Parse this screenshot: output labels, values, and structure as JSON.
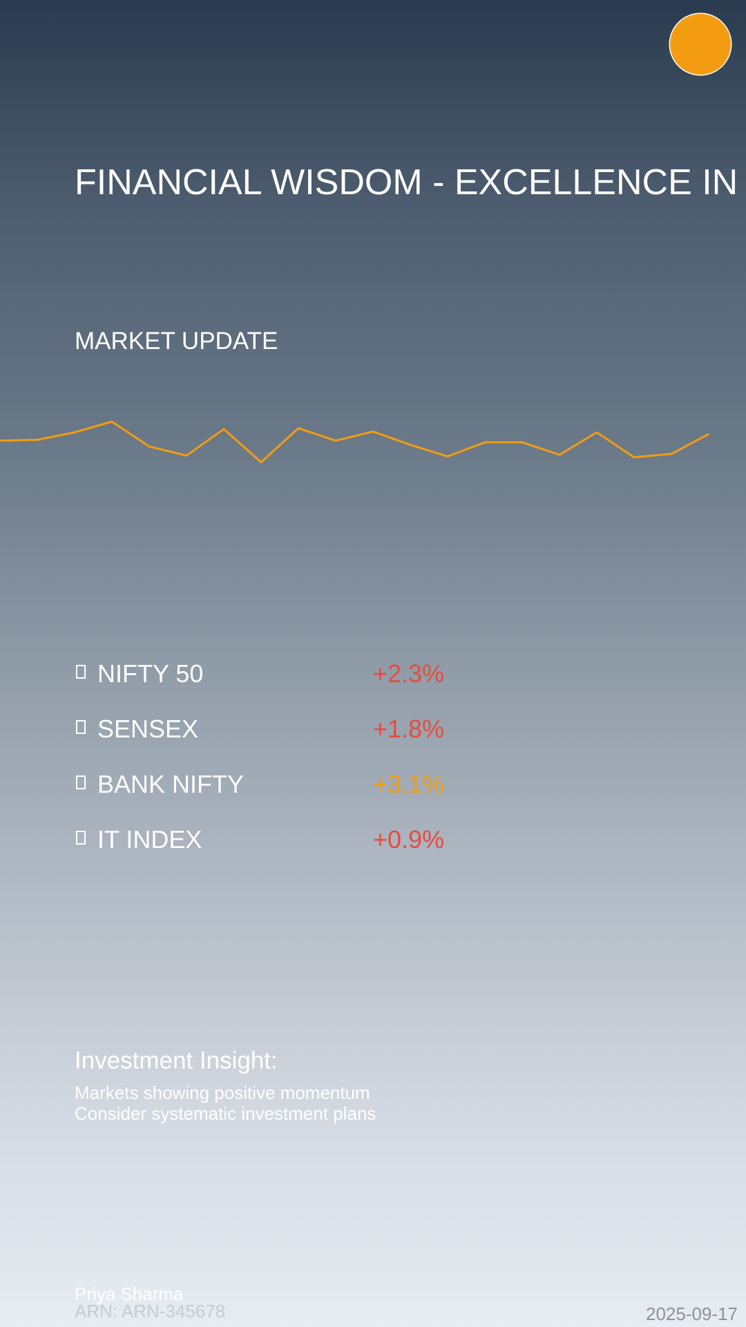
{
  "brand": {
    "accent_color": "#f39c12",
    "logo_icon": "orange-circle-logo"
  },
  "headline": "FINANCIAL WISDOM - EXCELLENCE IN",
  "market": {
    "section_title": "MARKET UPDATE",
    "indices": [
      {
        "name": "NIFTY 50",
        "change": "+2.3%",
        "color": "#e74c3c"
      },
      {
        "name": "SENSEX",
        "change": "+1.8%",
        "color": "#e74c3c"
      },
      {
        "name": "BANK NIFTY",
        "change": "+3.1%",
        "color": "#f39c12"
      },
      {
        "name": "IT INDEX",
        "change": "+0.9%",
        "color": "#e74c3c"
      }
    ],
    "index_icon": "box-glyph-icon"
  },
  "chart_data": {
    "type": "line",
    "title": "",
    "xlabel": "",
    "ylabel": "",
    "grid": false,
    "legend": "none",
    "color": "#f39c12",
    "values": [
      52,
      53,
      62,
      75,
      45,
      34,
      66,
      26,
      67,
      52,
      63,
      47,
      33,
      50,
      50,
      35,
      62,
      32,
      36,
      60
    ],
    "ylim": [
      0,
      100
    ]
  },
  "insight": {
    "title": "Investment Insight:",
    "lines": [
      "Markets showing positive momentum",
      "Consider systematic investment plans"
    ]
  },
  "footer": {
    "name": "Priya Sharma",
    "arn": "ARN: ARN-345678",
    "date": "2025-09-17"
  }
}
